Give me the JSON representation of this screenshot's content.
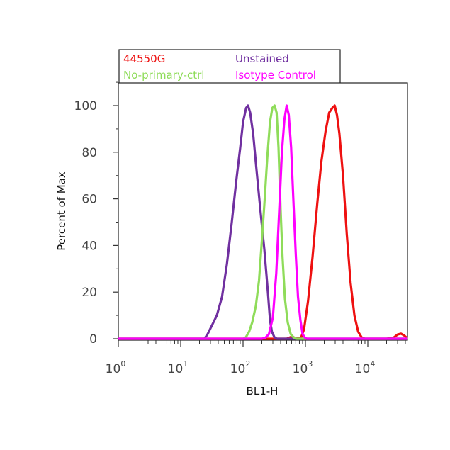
{
  "chart_data": {
    "type": "line",
    "xlabel": "BL1-H",
    "ylabel": "Percent of Max",
    "x_scale": "log",
    "xlim": [
      1,
      60000
    ],
    "ylim": [
      0,
      110
    ],
    "x_ticks": [
      {
        "value": 1,
        "base": "10",
        "exp": "0"
      },
      {
        "value": 10,
        "base": "10",
        "exp": "1"
      },
      {
        "value": 100,
        "base": "10",
        "exp": "2"
      },
      {
        "value": 1000,
        "base": "10",
        "exp": "3"
      },
      {
        "value": 10000,
        "base": "10",
        "exp": "4"
      }
    ],
    "y_ticks": [
      0,
      20,
      40,
      60,
      80,
      100
    ],
    "legend_position": "top, above plot",
    "series": [
      {
        "name": "44550G",
        "color": "#ee1111",
        "points": [
          [
            1,
            0
          ],
          [
            20,
            0
          ],
          [
            500,
            0
          ],
          [
            620,
            1
          ],
          [
            700,
            0
          ],
          [
            850,
            0.5
          ],
          [
            950,
            4
          ],
          [
            1100,
            16
          ],
          [
            1300,
            35
          ],
          [
            1550,
            58
          ],
          [
            1800,
            76
          ],
          [
            2100,
            89
          ],
          [
            2400,
            97
          ],
          [
            2700,
            99
          ],
          [
            2950,
            100
          ],
          [
            3200,
            96
          ],
          [
            3500,
            88
          ],
          [
            4000,
            70
          ],
          [
            4600,
            45
          ],
          [
            5300,
            24
          ],
          [
            6100,
            10
          ],
          [
            7000,
            3
          ],
          [
            8000,
            0.5
          ],
          [
            9000,
            0
          ],
          [
            20000,
            0
          ],
          [
            26000,
            0.5
          ],
          [
            30000,
            1.8
          ],
          [
            34000,
            2.2
          ],
          [
            38000,
            1.5
          ],
          [
            42000,
            0.5
          ],
          [
            45000,
            0
          ],
          [
            60000,
            0
          ]
        ]
      },
      {
        "name": "Unstained",
        "color": "#7030a0",
        "points": [
          [
            1,
            0
          ],
          [
            10,
            0
          ],
          [
            24,
            0
          ],
          [
            27,
            2
          ],
          [
            32,
            6
          ],
          [
            38,
            10
          ],
          [
            46,
            18
          ],
          [
            55,
            32
          ],
          [
            66,
            50
          ],
          [
            78,
            68
          ],
          [
            90,
            82
          ],
          [
            100,
            93
          ],
          [
            112,
            99
          ],
          [
            120,
            100
          ],
          [
            130,
            97
          ],
          [
            145,
            88
          ],
          [
            165,
            72
          ],
          [
            190,
            55
          ],
          [
            220,
            38
          ],
          [
            250,
            20
          ],
          [
            270,
            8
          ],
          [
            290,
            3
          ],
          [
            320,
            0.5
          ],
          [
            350,
            0
          ],
          [
            60000,
            0
          ]
        ]
      },
      {
        "name": "No-primary-ctrl",
        "color": "#8fdc5a",
        "points": [
          [
            1,
            0
          ],
          [
            100,
            0
          ],
          [
            110,
            0.5
          ],
          [
            125,
            3
          ],
          [
            140,
            7
          ],
          [
            160,
            14
          ],
          [
            180,
            25
          ],
          [
            200,
            42
          ],
          [
            220,
            58
          ],
          [
            245,
            78
          ],
          [
            270,
            93
          ],
          [
            295,
            99
          ],
          [
            320,
            100
          ],
          [
            345,
            97
          ],
          [
            370,
            82
          ],
          [
            400,
            55
          ],
          [
            430,
            35
          ],
          [
            470,
            17
          ],
          [
            520,
            7
          ],
          [
            580,
            2
          ],
          [
            650,
            0.5
          ],
          [
            700,
            0
          ],
          [
            60000,
            0
          ]
        ]
      },
      {
        "name": "Isotype Control",
        "color": "#ff00ff",
        "points": [
          [
            1,
            0
          ],
          [
            200,
            0
          ],
          [
            230,
            0.5
          ],
          [
            260,
            2
          ],
          [
            300,
            9
          ],
          [
            340,
            28
          ],
          [
            380,
            55
          ],
          [
            420,
            80
          ],
          [
            460,
            94
          ],
          [
            500,
            100
          ],
          [
            540,
            96
          ],
          [
            590,
            82
          ],
          [
            640,
            60
          ],
          [
            700,
            36
          ],
          [
            760,
            18
          ],
          [
            830,
            8
          ],
          [
            900,
            2
          ],
          [
            980,
            0.5
          ],
          [
            1050,
            0
          ],
          [
            60000,
            0
          ]
        ]
      }
    ]
  }
}
